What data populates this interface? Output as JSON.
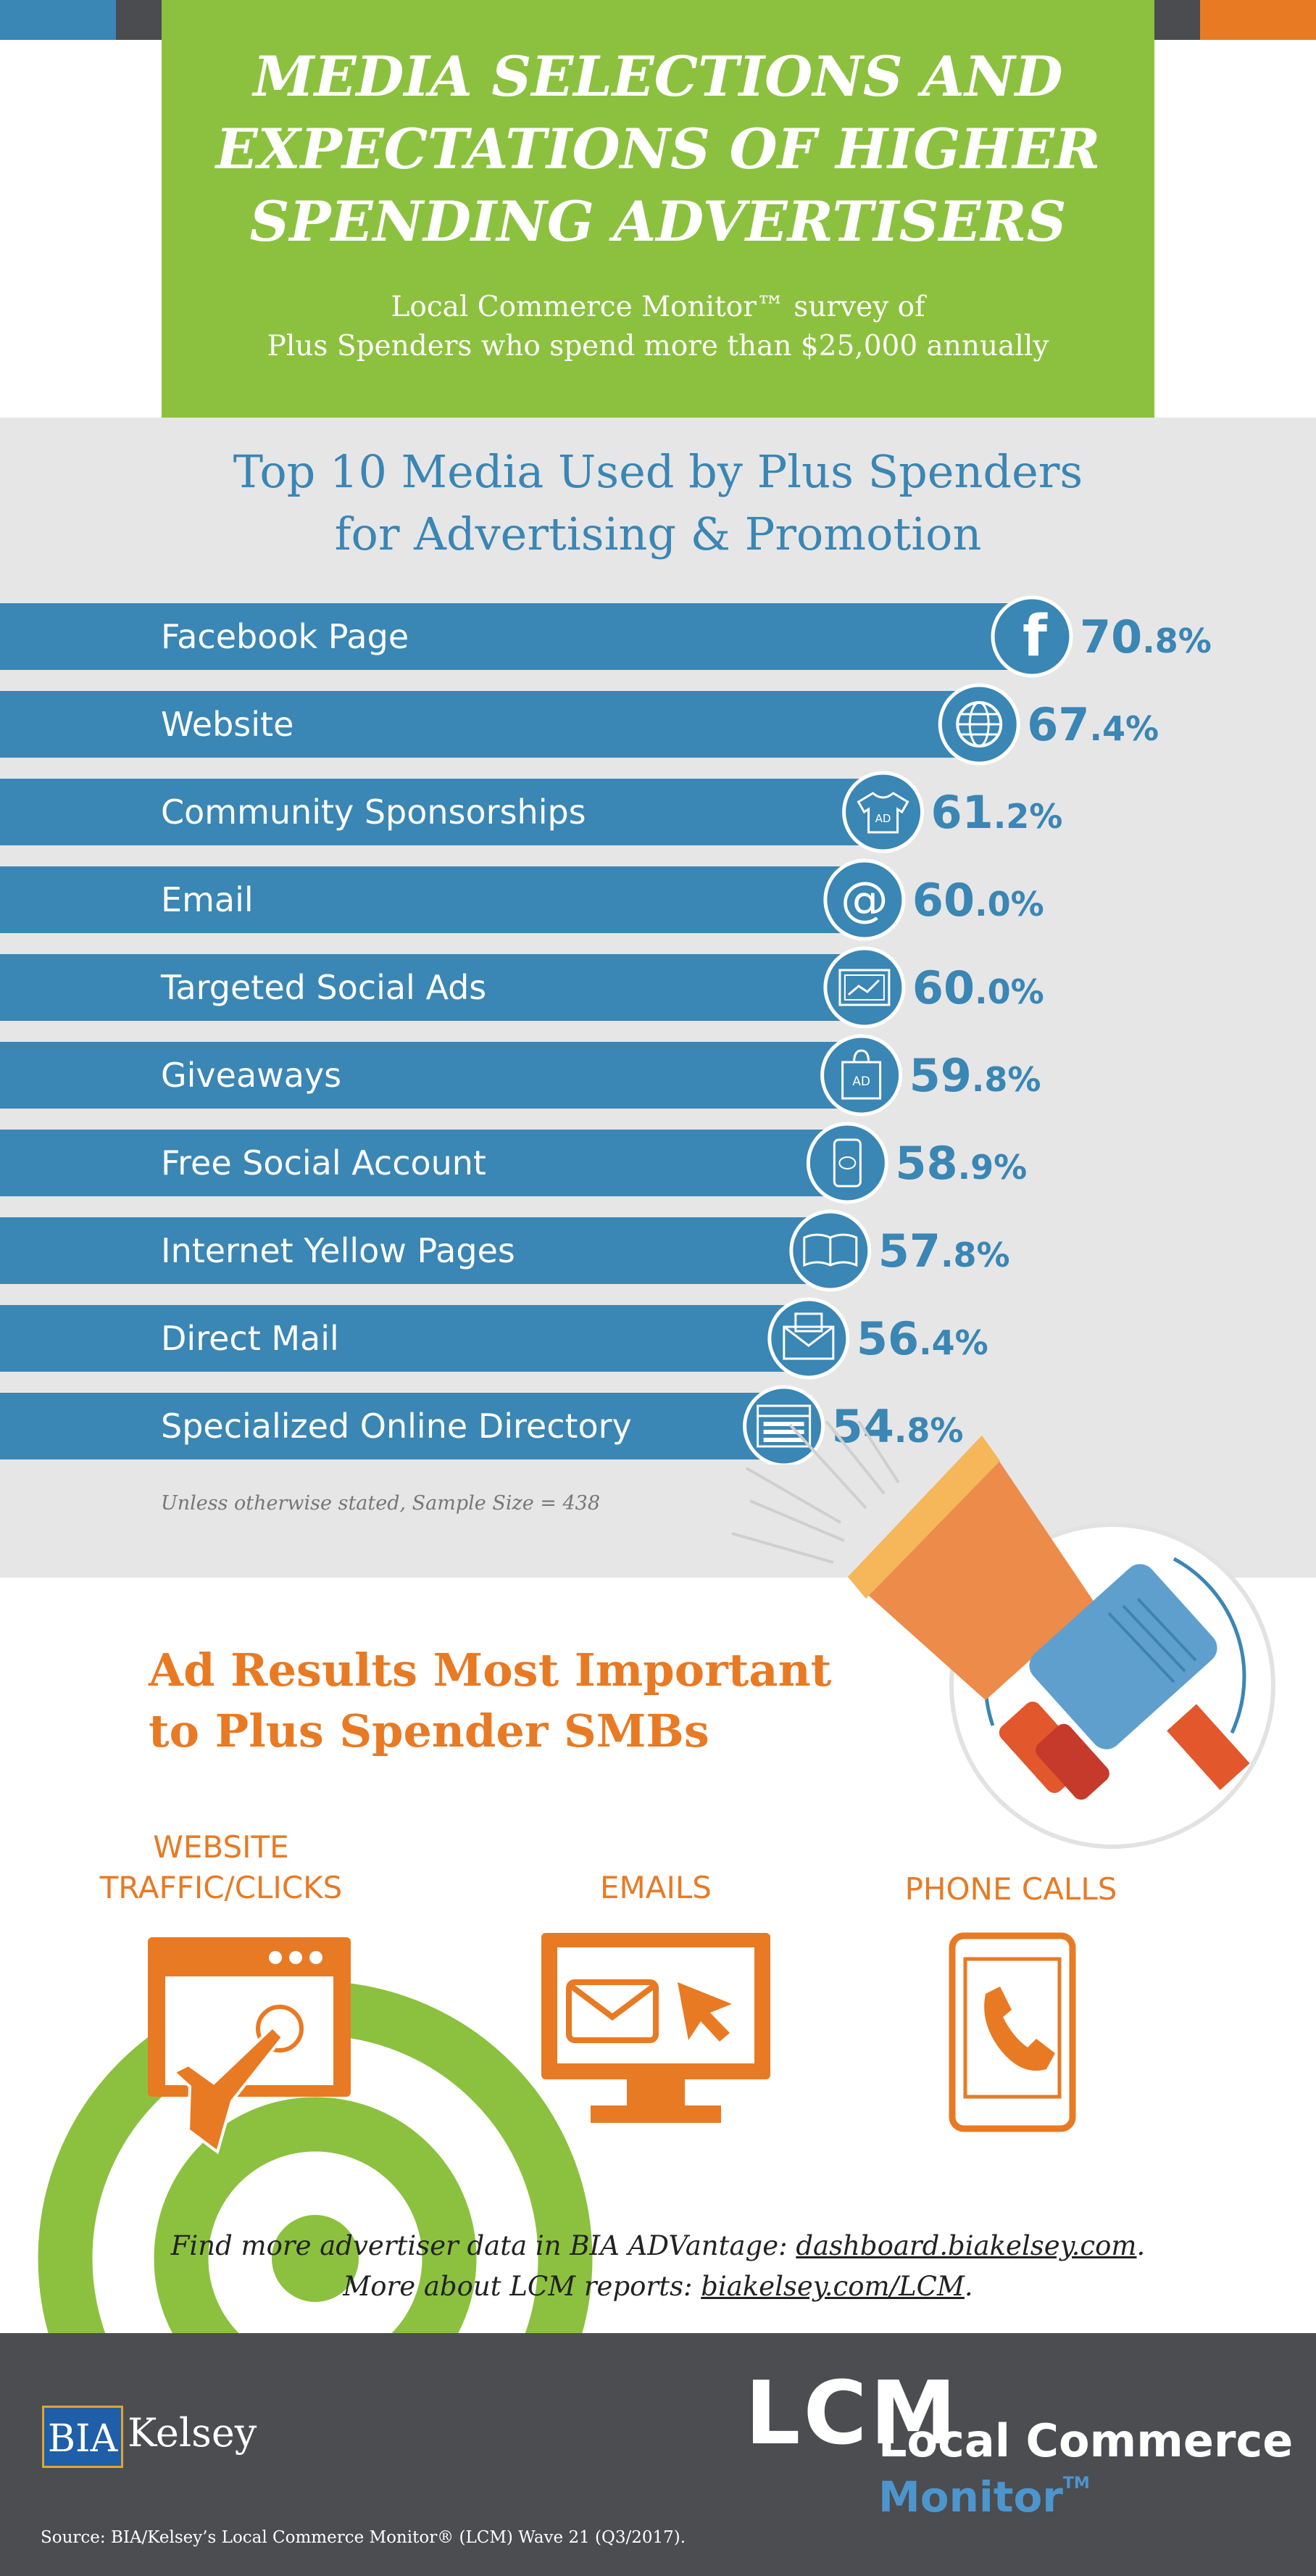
{
  "colors": {
    "green": "#8cc13f",
    "blue": "#3a86b4",
    "orange": "#e87a24",
    "grey_panel": "#e6e6e7",
    "dark_footer": "#4b4d51",
    "accent_dark": "#4a4c50",
    "accent_blue": "#3a86b4",
    "accent_orange": "#e87a24"
  },
  "header": {
    "title_lines": [
      "MEDIA SELECTIONS AND",
      "EXPECTATIONS OF HIGHER",
      "SPENDING ADVERTISERS"
    ],
    "subtitle_lines": [
      "Local Commerce Monitor™ survey of",
      "Plus Spenders who spend more than $25,000 annually"
    ]
  },
  "chart_data": {
    "type": "bar",
    "orientation": "horizontal",
    "title": "Top 10 Media Used by Plus Spenders for Advertising & Promotion",
    "title_lines": [
      "Top 10 Media Used by Plus Spenders",
      "for Advertising & Promotion"
    ],
    "categories": [
      "Facebook Page",
      "Website",
      "Community Sponsorships",
      "Email",
      "Targeted Social Ads",
      "Giveaways",
      "Free Social Account",
      "Internet Yellow Pages",
      "Direct Mail",
      "Specialized Online Directory"
    ],
    "values": [
      70.8,
      67.4,
      61.2,
      60.0,
      60.0,
      59.8,
      58.9,
      57.8,
      56.4,
      54.8
    ],
    "value_labels": [
      "70.8%",
      "67.4%",
      "61.2%",
      "60.0%",
      "60.0%",
      "59.8%",
      "58.9%",
      "57.8%",
      "56.4%",
      "54.8%"
    ],
    "icons": [
      "facebook-icon",
      "globe-icon",
      "ad-shirt-icon",
      "at-sign-icon",
      "social-ad-screen-icon",
      "ad-bag-icon",
      "smartphone-chat-icon",
      "book-icon",
      "mail-envelope-icon",
      "directory-page-icon"
    ],
    "sample_note": "Unless otherwise stated, Sample Size = 438"
  },
  "ad_results": {
    "title_lines": [
      "Ad Results Most Important",
      "to Plus Spender SMBs"
    ],
    "items": [
      {
        "label_lines": [
          "WEBSITE",
          "TRAFFIC/CLICKS"
        ],
        "icon": "website-click-icon"
      },
      {
        "label_lines": [
          "EMAILS"
        ],
        "icon": "email-monitor-icon"
      },
      {
        "label_lines": [
          "PHONE CALLS"
        ],
        "icon": "phone-call-icon"
      }
    ]
  },
  "footer": {
    "line1_prefix": "Find more advertiser data in BIA ADVantage: ",
    "line1_link": "dashboard.biakelsey.com",
    "line1_suffix": ".",
    "line2_prefix": "More about LCM reports: ",
    "line2_link": "biakelsey.com/LCM",
    "line2_suffix": ".",
    "source": "Source: BIA/Kelsey’s Local Commerce Monitor® (LCM) Wave 21 (Q3/2017)."
  },
  "logos": {
    "bia_box": "BIA",
    "bia_name": "Kelsey",
    "lcm_letters": "LCM",
    "lcm_line1": "Local Commerce",
    "lcm_line2": "Monitor",
    "lcm_tm": "TM"
  }
}
